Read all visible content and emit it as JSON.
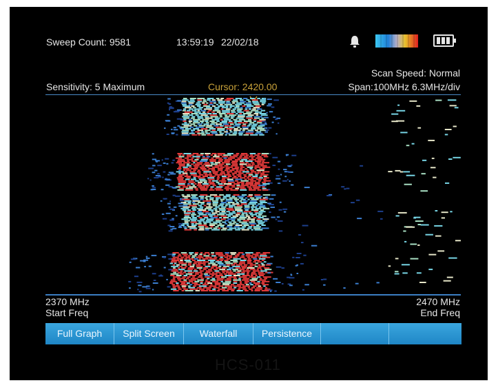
{
  "status": {
    "sweep_count": "Sweep Count: 9581",
    "time": "13:59:19",
    "date": "22/02/18"
  },
  "info": {
    "sensitivity": "Sensitivity: 5 Maximum",
    "cursor": "Cursor: 2420.00",
    "scan_speed": "Scan Speed: Normal",
    "span": "Span:100MHz 6.3MHz/div"
  },
  "axis": {
    "start_value": "2370  MHz",
    "start_label": "Start Freq",
    "end_value": "2470  MHz",
    "end_label": "End Freq"
  },
  "toolbar": {
    "buttons": [
      "Full Graph",
      "Split Screen",
      "Waterfall",
      "Persistence",
      "",
      ""
    ]
  },
  "footer_faint_text": "HCS-011",
  "icons": {
    "alarm": "bell-icon",
    "colorscale": "color-scale-icon",
    "battery": "battery-icon"
  },
  "colors": {
    "accent": "#2a95d4",
    "cursor": "#c9a23a",
    "divider": "#3c7fc4",
    "palette": [
      "#1d3f8c",
      "#3b7ed0",
      "#77d6e6",
      "#a9e0c4",
      "#e6e6c8",
      "#e23a3a"
    ]
  }
}
